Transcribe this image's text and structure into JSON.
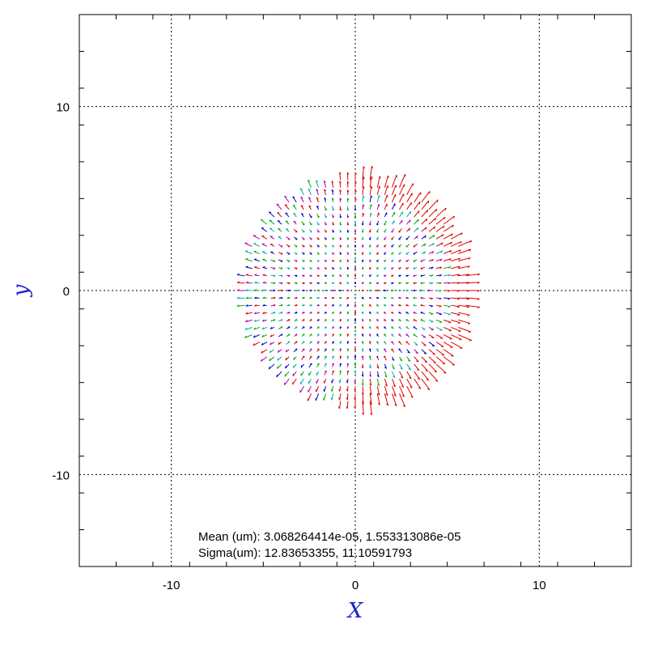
{
  "chart_data": {
    "type": "quiver",
    "title": "",
    "xlabel": "X",
    "ylabel": "y",
    "xlim": [
      -15,
      15
    ],
    "ylim": [
      -15,
      15
    ],
    "xticks": [
      -10,
      0,
      10
    ],
    "yticks": [
      -10,
      0,
      10
    ],
    "xtick_labels": [
      "-10",
      "0",
      "10"
    ],
    "ytick_labels": [
      "-10",
      "0",
      "10"
    ],
    "grid": true,
    "grid_style": "dotted",
    "field": {
      "shape": "disk",
      "center": [
        0,
        0
      ],
      "radius": 6.1,
      "grid_spacing": 0.4,
      "colors": [
        "#0000cc",
        "#00aa00",
        "#00aaaa",
        "#aa00aa",
        "#dd0000",
        "#000000"
      ]
    },
    "annotations": [
      "Mean (um): 3.068264414e-05, 1.553313086e-05",
      "Sigma(um): 12.83653355, 11.10591793"
    ]
  },
  "colors": {
    "axis_title": "#1f1fc8",
    "frame": "#000000",
    "grid": "#000000"
  }
}
